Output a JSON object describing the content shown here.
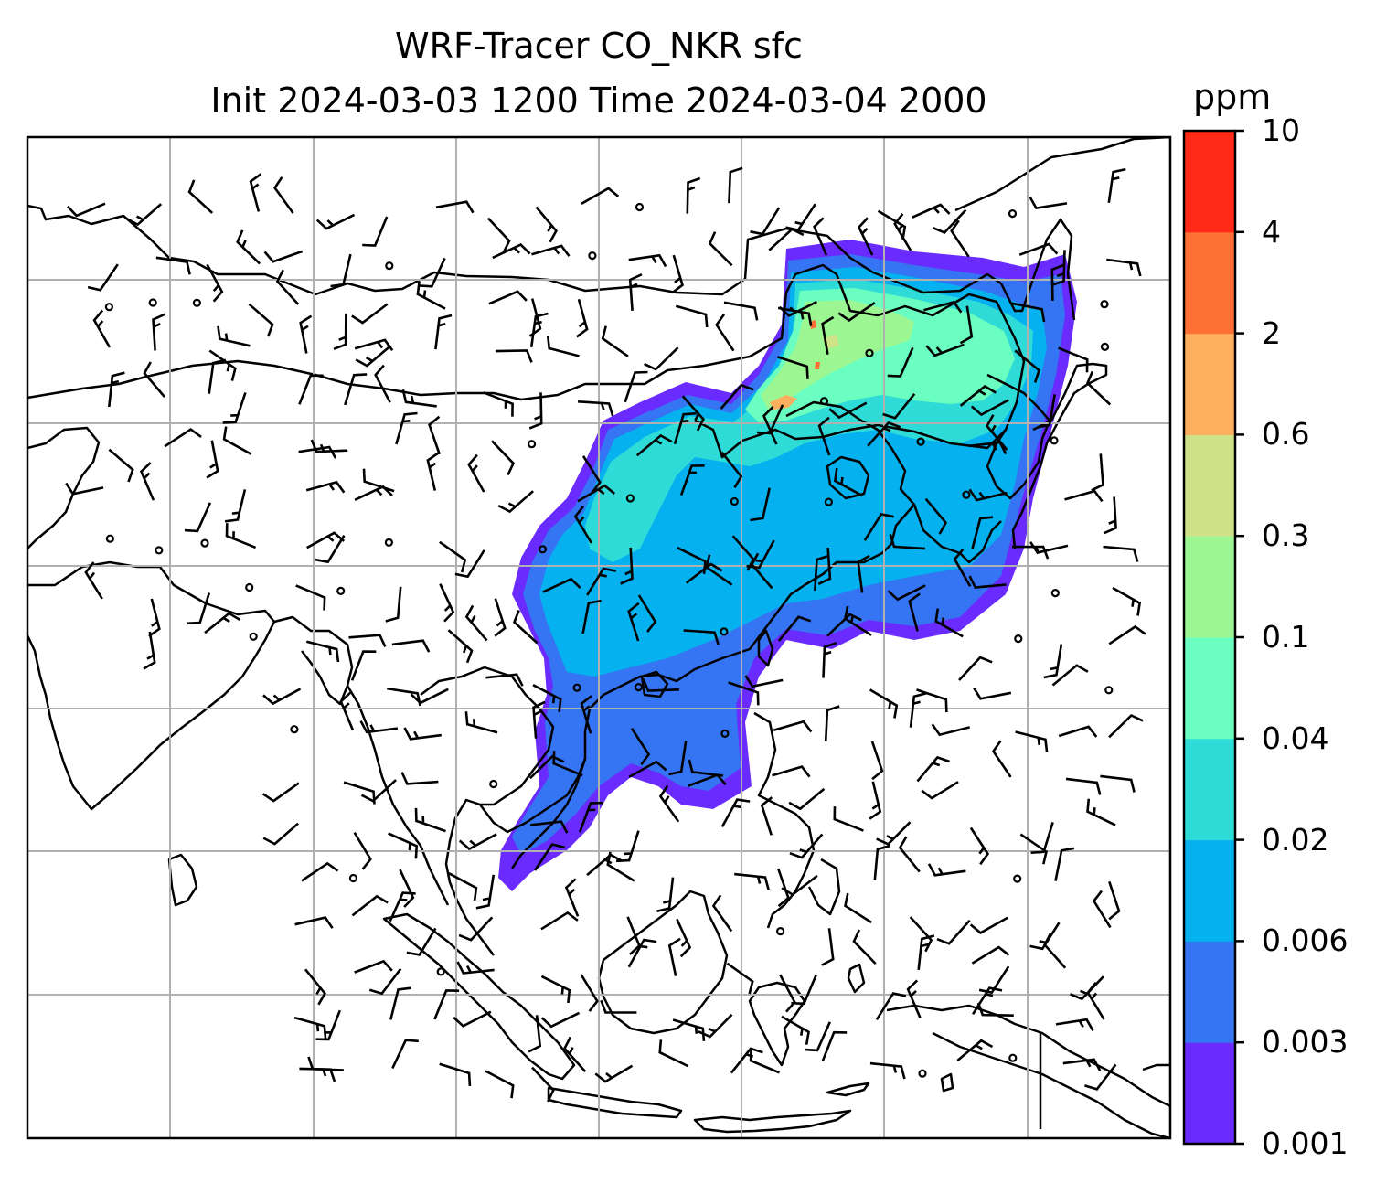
{
  "title": {
    "line1": "WRF-Tracer CO_NKR sfc",
    "line2": "Init 2024-03-03 1200 Time 2024-03-04 2000"
  },
  "colorbar": {
    "unit": "ppm",
    "levels": [
      "0.001",
      "0.003",
      "0.006",
      "0.02",
      "0.04",
      "0.1",
      "0.3",
      "0.6",
      "2",
      "4",
      "10"
    ],
    "colors": [
      "#6a2bff",
      "#3574f2",
      "#05b1ee",
      "#2fdbd6",
      "#6affc0",
      "#9cf793",
      "#d0e287",
      "#fdaf5e",
      "#ff7035",
      "#ff2b17"
    ]
  },
  "map": {
    "gridlines": true,
    "colors": {
      "coast": "#000000",
      "grid": "#b0b0b0",
      "barb": "#000000"
    }
  }
}
